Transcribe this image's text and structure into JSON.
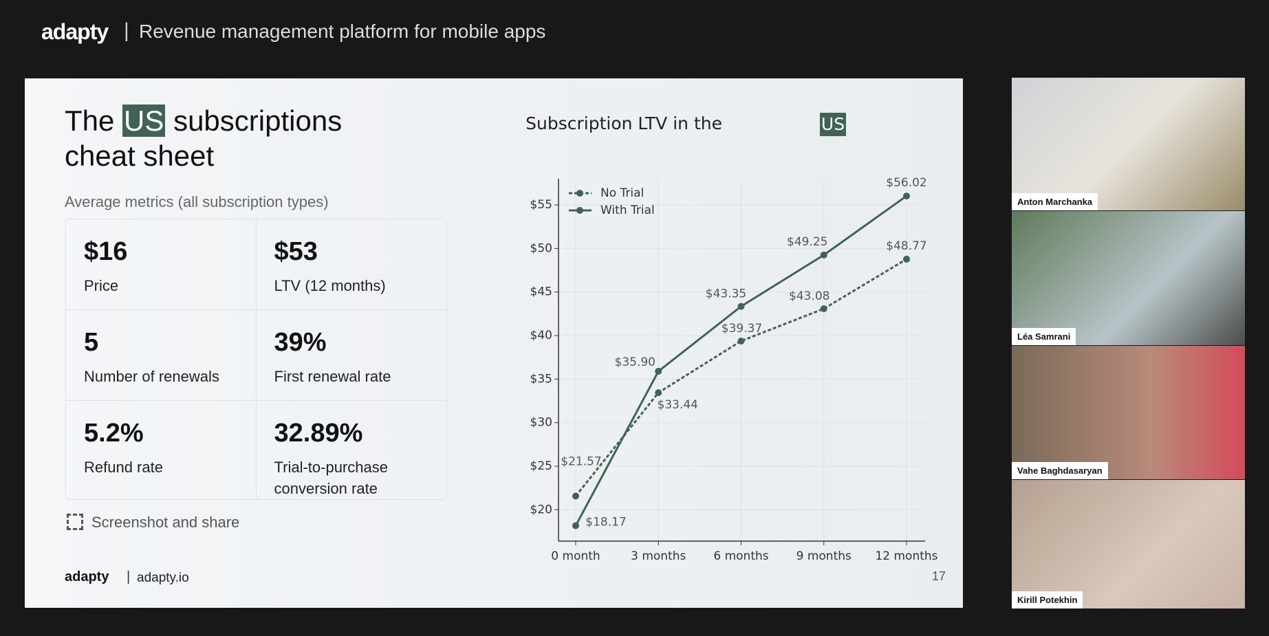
{
  "header": {
    "logo": "adapty",
    "tagline": "Revenue management platform for mobile apps"
  },
  "slide": {
    "title": {
      "prefix": "The",
      "highlight": "US",
      "suffix": "subscriptions",
      "line2": "cheat sheet"
    },
    "subtitle": "Average metrics (all subscription types)",
    "metrics": [
      {
        "value": "$16",
        "label": "Price"
      },
      {
        "value": "$53",
        "label": "LTV (12 months)"
      },
      {
        "value": "5",
        "label": "Number of renewals"
      },
      {
        "value": "39%",
        "label": "First renewal rate"
      },
      {
        "value": "5.2%",
        "label": "Refund rate"
      },
      {
        "value": "32.89%",
        "label": "Trial-to-purchase conversion rate"
      }
    ],
    "share": "Screenshot and share",
    "footer": {
      "logo": "adapty",
      "site": "adapty.io"
    },
    "page_number": "17"
  },
  "chart_data": {
    "type": "line",
    "title": {
      "prefix": "Subscription LTV in the",
      "highlight": "US"
    },
    "categories": [
      "0 month",
      "3 months",
      "6 months",
      "9 months",
      "12 months"
    ],
    "series": [
      {
        "name": "No Trial",
        "color": "#3f6354",
        "line_style": "dashed",
        "values": [
          21.57,
          33.44,
          39.37,
          43.08,
          48.77
        ],
        "value_labels": [
          "$21.57",
          "$33.44",
          "$39.37",
          "$43.08",
          "$48.77"
        ]
      },
      {
        "name": "With Trial",
        "color": "#3f6354",
        "line_style": "solid",
        "values": [
          18.17,
          35.9,
          43.35,
          49.25,
          56.02
        ],
        "value_labels": [
          "$18.17",
          "$35.90",
          "$43.35",
          "$49.25",
          "$56.02"
        ]
      }
    ],
    "ylim": [
      16.4,
      58
    ],
    "yticks": [
      {
        "value": 20,
        "label": "$20"
      },
      {
        "value": 25,
        "label": "$25"
      },
      {
        "value": 30,
        "label": "$30"
      },
      {
        "value": 35,
        "label": "$35"
      },
      {
        "value": 40,
        "label": "$40"
      },
      {
        "value": 45,
        "label": "$45"
      },
      {
        "value": 50,
        "label": "$50"
      },
      {
        "value": 55,
        "label": "$55"
      }
    ],
    "grid": true,
    "legend": "upper left"
  },
  "participants": [
    "Anton Marchanka",
    "Léa Samrani",
    "Vahe Baghdasaryan",
    "Kirill Potekhin"
  ]
}
